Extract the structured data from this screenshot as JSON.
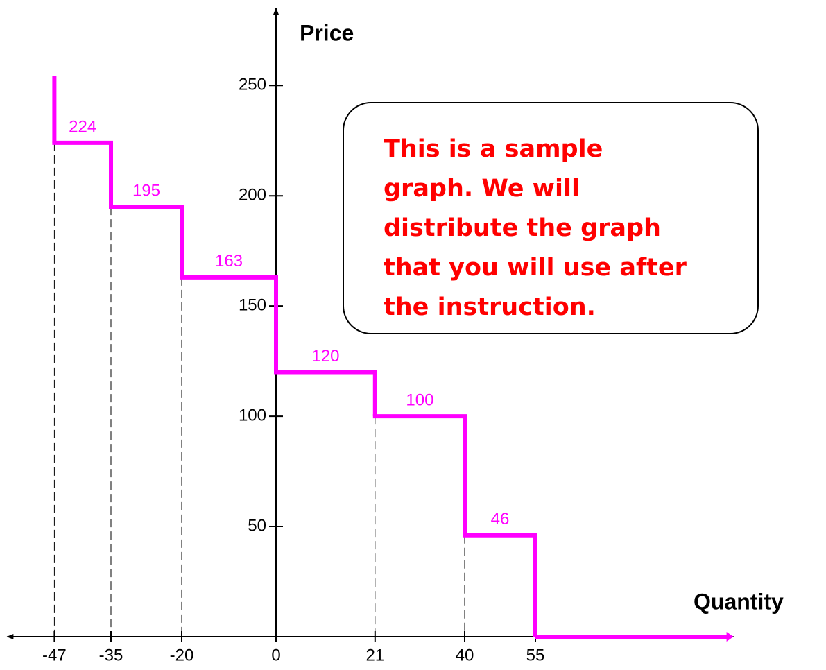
{
  "chart_data": {
    "type": "step",
    "y_label": "Price",
    "x_label": "Quantity",
    "edges": [
      -47,
      -35,
      -20,
      0,
      21,
      40,
      55
    ],
    "values": [
      224,
      195,
      163,
      120,
      100,
      46
    ],
    "color": "#ff00ff",
    "xlim": [
      -57,
      97
    ],
    "ylim": [
      0,
      285
    ],
    "xticks": [
      -47,
      -35,
      -20,
      0,
      21,
      40,
      55
    ],
    "yticks": [
      50,
      100,
      150,
      200,
      250
    ],
    "annotation": [
      "This is a sample",
      "graph. We will",
      "distribute the graph",
      "that you will use after",
      "the instruction."
    ]
  }
}
